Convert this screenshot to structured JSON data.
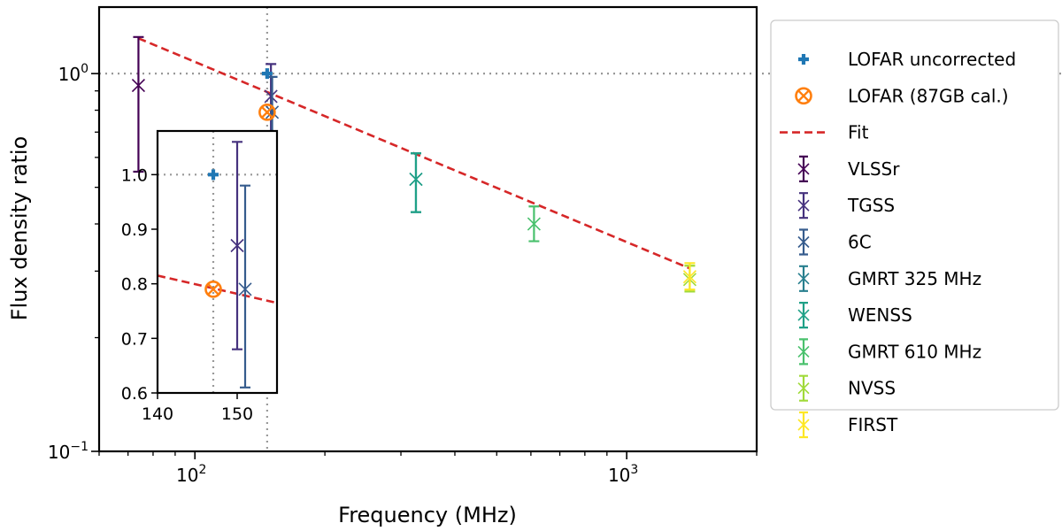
{
  "chart_data": {
    "type": "scatter",
    "xscale": "log",
    "yscale": "log",
    "xlim": [
      60,
      2000
    ],
    "ylim": [
      0.1,
      1.5
    ],
    "xlabel": "Frequency (MHz)",
    "ylabel": "Flux density ratio",
    "x_ticks": [
      {
        "value": 100,
        "label": "10",
        "exp": "2"
      },
      {
        "value": 1000,
        "label": "10",
        "exp": "3"
      }
    ],
    "y_ticks": [
      {
        "value": 0.1,
        "label": "10",
        "exp": "−1"
      },
      {
        "value": 1.0,
        "label": "10",
        "exp": "0"
      }
    ],
    "reference_lines": {
      "x": 147,
      "y": 1.0
    },
    "lofar_uncorrected": {
      "name": "LOFAR uncorrected",
      "x": 147,
      "y": 1.0,
      "color": "#1f77b4"
    },
    "lofar_calibrated": {
      "name": "LOFAR (87GB cal.)",
      "x": 147,
      "y": 0.79,
      "color": "#ff7f0e"
    },
    "fit": {
      "name": "Fit",
      "x": [
        74,
        1400
      ],
      "y": [
        1.24,
        0.305
      ],
      "color": "#d62728"
    },
    "series": [
      {
        "name": "VLSSr",
        "x": 74,
        "y": 0.93,
        "yerr_low": 0.55,
        "yerr_high": 1.25,
        "color": "#440154"
      },
      {
        "name": "TGSS",
        "x": 150,
        "y": 0.87,
        "yerr_low": 0.68,
        "yerr_high": 1.06,
        "color": "#46327e"
      },
      {
        "name": "6C",
        "x": 151,
        "y": 0.79,
        "yerr_low": 0.61,
        "yerr_high": 0.98,
        "color": "#365c8d"
      },
      {
        "name": "GMRT 325 MHz",
        "x": 325,
        "y": 0.525,
        "yerr_low": 0.43,
        "yerr_high": 0.615,
        "color": "#277f8e"
      },
      {
        "name": "WENSS",
        "x": 325,
        "y": 0.525,
        "yerr_low": 0.43,
        "yerr_high": 0.615,
        "color": "#1fa187"
      },
      {
        "name": "GMRT 610 MHz",
        "x": 610,
        "y": 0.4,
        "yerr_low": 0.36,
        "yerr_high": 0.445,
        "color": "#4ac16d"
      },
      {
        "name": "NVSS",
        "x": 1400,
        "y": 0.285,
        "yerr_low": 0.265,
        "yerr_high": 0.31,
        "color": "#a0da39"
      },
      {
        "name": "FIRST",
        "x": 1400,
        "y": 0.29,
        "yerr_low": 0.268,
        "yerr_high": 0.315,
        "color": "#fde725"
      }
    ],
    "inset": {
      "xlim": [
        140,
        155
      ],
      "ylim": [
        0.6,
        1.08
      ],
      "x_ticks": [
        {
          "value": 140,
          "label": "140"
        },
        {
          "value": 150,
          "label": "150"
        }
      ],
      "y_ticks": [
        {
          "value": 0.6,
          "label": "0.6"
        },
        {
          "value": 0.7,
          "label": "0.7"
        },
        {
          "value": 0.8,
          "label": "0.8"
        },
        {
          "value": 0.9,
          "label": "0.9"
        },
        {
          "value": 1.0,
          "label": "1.0"
        }
      ],
      "fit_y_at_xlim": [
        0.815,
        0.765
      ]
    }
  }
}
